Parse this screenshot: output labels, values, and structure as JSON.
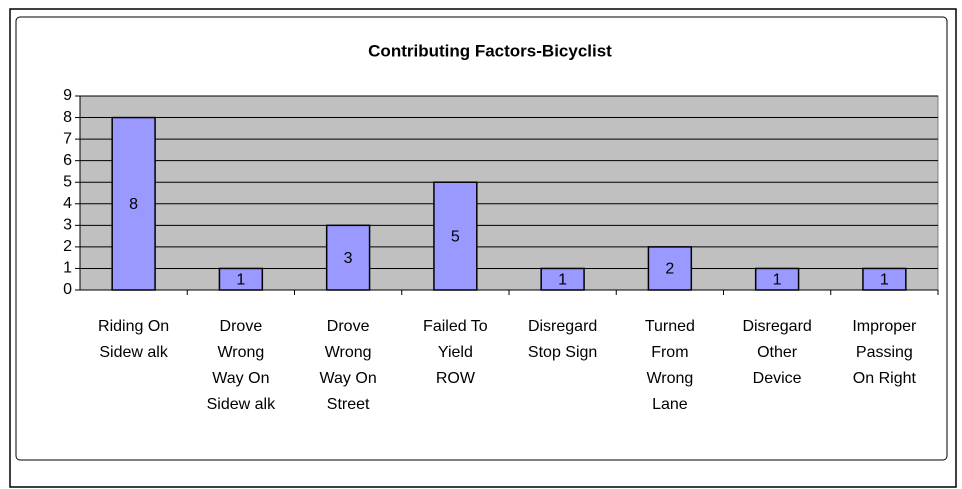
{
  "chart_data": {
    "type": "bar",
    "title": "Contributing Factors-Bicyclist",
    "categories": [
      [
        "Riding On",
        "Sidew alk"
      ],
      [
        "Drove",
        "Wrong",
        "Way On",
        "Sidew alk"
      ],
      [
        "Drove",
        "Wrong",
        "Way On",
        "Street"
      ],
      [
        "Failed To",
        "Yield",
        "ROW"
      ],
      [
        "Disregard",
        "Stop Sign"
      ],
      [
        "Turned",
        "From",
        "Wrong",
        "Lane"
      ],
      [
        "Disregard",
        "Other",
        "Device"
      ],
      [
        "Improper",
        "Passing",
        "On Right"
      ]
    ],
    "values": [
      8,
      1,
      3,
      5,
      1,
      2,
      1,
      1
    ],
    "color": "#9999ff",
    "ylim": [
      0,
      9
    ],
    "yticks": [
      0,
      1,
      2,
      3,
      4,
      5,
      6,
      7,
      8,
      9
    ],
    "grid": true
  }
}
